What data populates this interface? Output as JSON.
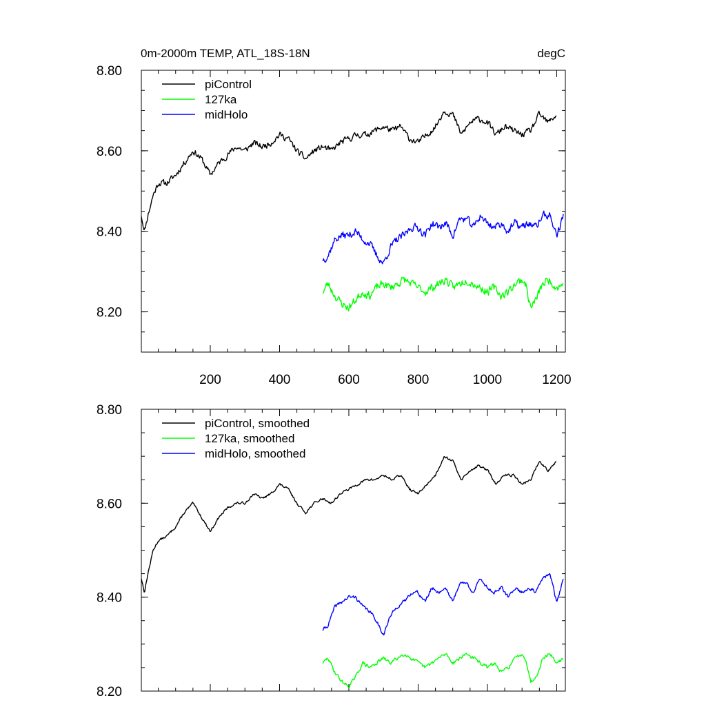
{
  "chart_data": [
    {
      "type": "line",
      "title": "0m-2000m TEMP, ATL_18S-18N",
      "units": "degC",
      "xlabel": "",
      "ylabel": "",
      "xlim": [
        1,
        1225
      ],
      "ylim": [
        8.1,
        8.8
      ],
      "x_ticks": [
        200,
        400,
        600,
        800,
        1000,
        1200
      ],
      "x_tick_labels": [
        "200",
        "400",
        "600",
        "800",
        "1000",
        "1200"
      ],
      "y_ticks": [
        8.2,
        8.4,
        8.6,
        8.8
      ],
      "y_tick_labels": [
        "8.20",
        "8.40",
        "8.60",
        "8.80"
      ],
      "legend_position": "top-left",
      "grid": false,
      "series": [
        {
          "name": "piControl",
          "color": "#000000",
          "noise": 0.012,
          "seed": 11,
          "x": [
            1,
            10,
            20,
            35,
            50,
            75,
            100,
            125,
            150,
            175,
            200,
            225,
            250,
            275,
            300,
            325,
            350,
            375,
            400,
            425,
            450,
            475,
            500,
            525,
            550,
            575,
            600,
            625,
            650,
            675,
            700,
            725,
            750,
            775,
            800,
            825,
            850,
            875,
            900,
            925,
            950,
            975,
            1000,
            1025,
            1050,
            1075,
            1100,
            1125,
            1150,
            1175,
            1200
          ],
          "values": [
            8.44,
            8.4,
            8.44,
            8.49,
            8.52,
            8.52,
            8.54,
            8.57,
            8.6,
            8.58,
            8.54,
            8.57,
            8.59,
            8.61,
            8.6,
            8.62,
            8.61,
            8.62,
            8.64,
            8.63,
            8.6,
            8.58,
            8.6,
            8.61,
            8.6,
            8.62,
            8.63,
            8.64,
            8.64,
            8.65,
            8.66,
            8.65,
            8.66,
            8.63,
            8.62,
            8.64,
            8.66,
            8.7,
            8.69,
            8.64,
            8.67,
            8.68,
            8.67,
            8.64,
            8.66,
            8.65,
            8.64,
            8.65,
            8.69,
            8.67,
            8.69
          ]
        },
        {
          "name": "127ka",
          "color": "#00ff00",
          "noise": 0.016,
          "seed": 23,
          "x": [
            525,
            540,
            560,
            580,
            600,
            620,
            640,
            660,
            680,
            700,
            720,
            740,
            760,
            780,
            800,
            820,
            840,
            860,
            880,
            900,
            920,
            940,
            960,
            980,
            1000,
            1020,
            1040,
            1060,
            1080,
            1100,
            1110,
            1125,
            1140,
            1160,
            1180,
            1200,
            1220
          ],
          "values": [
            8.25,
            8.27,
            8.24,
            8.22,
            8.21,
            8.23,
            8.25,
            8.24,
            8.26,
            8.27,
            8.26,
            8.27,
            8.28,
            8.27,
            8.26,
            8.25,
            8.26,
            8.27,
            8.28,
            8.26,
            8.27,
            8.28,
            8.27,
            8.26,
            8.25,
            8.26,
            8.24,
            8.25,
            8.27,
            8.28,
            8.27,
            8.21,
            8.23,
            8.27,
            8.28,
            8.26,
            8.27
          ]
        },
        {
          "name": "midHolo",
          "color": "#0000ff",
          "noise": 0.015,
          "seed": 37,
          "x": [
            525,
            540,
            560,
            580,
            600,
            620,
            640,
            660,
            680,
            700,
            720,
            740,
            760,
            780,
            800,
            820,
            840,
            860,
            880,
            900,
            920,
            940,
            960,
            980,
            1000,
            1020,
            1040,
            1060,
            1080,
            1100,
            1120,
            1140,
            1160,
            1180,
            1200,
            1220
          ],
          "values": [
            8.33,
            8.34,
            8.38,
            8.39,
            8.39,
            8.4,
            8.38,
            8.37,
            8.34,
            8.32,
            8.36,
            8.38,
            8.39,
            8.41,
            8.41,
            8.39,
            8.42,
            8.41,
            8.42,
            8.39,
            8.43,
            8.43,
            8.41,
            8.44,
            8.42,
            8.41,
            8.42,
            8.4,
            8.42,
            8.41,
            8.42,
            8.41,
            8.44,
            8.44,
            8.39,
            8.44
          ]
        }
      ]
    },
    {
      "type": "line",
      "title": "",
      "xlabel": "",
      "ylabel": "",
      "xlim": [
        1,
        1225
      ],
      "ylim": [
        8.2,
        8.8
      ],
      "x_ticks": [
        200,
        400,
        600,
        800,
        1000,
        1200
      ],
      "x_tick_labels": [],
      "y_ticks": [
        8.2,
        8.4,
        8.6,
        8.8
      ],
      "y_tick_labels": [
        "8.20",
        "8.40",
        "8.60",
        "8.80"
      ],
      "legend_position": "top-left",
      "grid": false,
      "series": [
        {
          "name": "piControl, smoothed",
          "color": "#000000",
          "noise": 0.004,
          "seed": 13,
          "x": [
            1,
            10,
            20,
            35,
            50,
            75,
            100,
            125,
            150,
            175,
            200,
            225,
            250,
            275,
            300,
            325,
            350,
            375,
            400,
            425,
            450,
            475,
            500,
            525,
            550,
            575,
            600,
            625,
            650,
            675,
            700,
            725,
            750,
            775,
            800,
            825,
            850,
            875,
            900,
            925,
            950,
            975,
            1000,
            1025,
            1050,
            1075,
            1100,
            1125,
            1150,
            1175,
            1200
          ],
          "values": [
            8.44,
            8.41,
            8.45,
            8.5,
            8.52,
            8.53,
            8.55,
            8.58,
            8.6,
            8.57,
            8.54,
            8.57,
            8.59,
            8.6,
            8.6,
            8.62,
            8.61,
            8.62,
            8.64,
            8.63,
            8.6,
            8.58,
            8.6,
            8.61,
            8.6,
            8.62,
            8.63,
            8.64,
            8.65,
            8.65,
            8.66,
            8.65,
            8.66,
            8.63,
            8.62,
            8.64,
            8.66,
            8.7,
            8.69,
            8.65,
            8.67,
            8.68,
            8.67,
            8.64,
            8.66,
            8.66,
            8.64,
            8.65,
            8.69,
            8.67,
            8.69
          ]
        },
        {
          "name": "127ka, smoothed",
          "color": "#00ff00",
          "noise": 0.006,
          "seed": 29,
          "x": [
            525,
            540,
            560,
            580,
            600,
            620,
            640,
            660,
            680,
            700,
            720,
            740,
            760,
            780,
            800,
            820,
            840,
            860,
            880,
            900,
            920,
            940,
            960,
            980,
            1000,
            1020,
            1040,
            1060,
            1080,
            1100,
            1110,
            1125,
            1140,
            1160,
            1180,
            1200,
            1220
          ],
          "values": [
            8.26,
            8.27,
            8.24,
            8.22,
            8.21,
            8.23,
            8.26,
            8.25,
            8.26,
            8.27,
            8.26,
            8.27,
            8.28,
            8.27,
            8.26,
            8.25,
            8.26,
            8.27,
            8.28,
            8.26,
            8.27,
            8.28,
            8.27,
            8.26,
            8.25,
            8.26,
            8.24,
            8.25,
            8.27,
            8.28,
            8.27,
            8.22,
            8.23,
            8.27,
            8.28,
            8.26,
            8.27
          ]
        },
        {
          "name": "midHolo, smoothed",
          "color": "#0000ff",
          "noise": 0.006,
          "seed": 41,
          "x": [
            525,
            540,
            560,
            580,
            600,
            620,
            640,
            660,
            680,
            700,
            720,
            740,
            760,
            780,
            800,
            820,
            840,
            860,
            880,
            900,
            920,
            940,
            960,
            980,
            1000,
            1020,
            1040,
            1060,
            1080,
            1100,
            1120,
            1140,
            1160,
            1180,
            1200,
            1220
          ],
          "values": [
            8.33,
            8.34,
            8.38,
            8.39,
            8.4,
            8.4,
            8.38,
            8.37,
            8.35,
            8.32,
            8.36,
            8.38,
            8.39,
            8.41,
            8.41,
            8.39,
            8.42,
            8.41,
            8.42,
            8.39,
            8.43,
            8.43,
            8.41,
            8.44,
            8.42,
            8.41,
            8.42,
            8.4,
            8.42,
            8.41,
            8.42,
            8.41,
            8.44,
            8.45,
            8.39,
            8.44
          ]
        }
      ]
    }
  ]
}
